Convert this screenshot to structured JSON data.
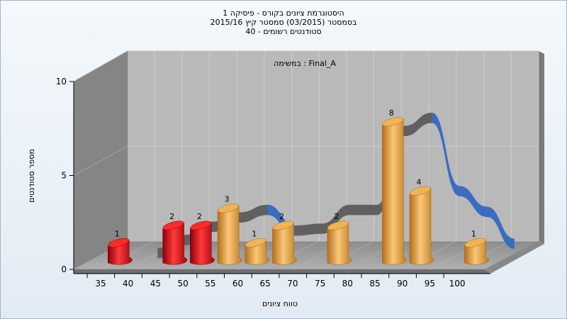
{
  "chart_data": {
    "type": "bar",
    "title_lines": [
      "היסטוגרמת ציונים בקורס - פיסיקה 1",
      "בסמסטר  (03/2015)  סמסטר קיץ 2015/16",
      "סטודנטים רשומים - 40"
    ],
    "annotation": "במשימה : Final_A",
    "xlabel": "טווח ציונים",
    "ylabel": "מספר סטודנטים",
    "ylim": [
      0,
      10
    ],
    "yticks": [
      0,
      5,
      10
    ],
    "xticks": [
      "35",
      "40",
      "45",
      "50",
      "55",
      "60",
      "65",
      "70",
      "75",
      "80",
      "85",
      "90",
      "95",
      "100"
    ],
    "bars": [
      {
        "x": 35,
        "value": 1,
        "label": "1",
        "color": "#d8151c"
      },
      {
        "x": 45,
        "value": 2,
        "label": "2",
        "color": "#d8151c"
      },
      {
        "x": 50,
        "value": 2,
        "label": "2",
        "color": "#d8151c"
      },
      {
        "x": 55,
        "value": 3,
        "label": "3",
        "color": "#e6a23c"
      },
      {
        "x": 60,
        "value": 1,
        "label": "1",
        "color": "#e6a23c"
      },
      {
        "x": 65,
        "value": 2,
        "label": "2",
        "color": "#e6a23c"
      },
      {
        "x": 75,
        "value": 2,
        "label": "2",
        "color": "#e6a23c"
      },
      {
        "x": 85,
        "value": 8,
        "label": "8",
        "color": "#e6a23c"
      },
      {
        "x": 90,
        "value": 4,
        "label": "4",
        "color": "#e6a23c"
      },
      {
        "x": 100,
        "value": 1,
        "label": "1",
        "color": "#e6a23c"
      }
    ],
    "curve": {
      "colors": [
        "#3a6cc0",
        "#606060"
      ],
      "points": [
        {
          "x": 40,
          "y": 0.3
        },
        {
          "x": 45,
          "y": 1.0
        },
        {
          "x": 50,
          "y": 1.7
        },
        {
          "x": 55,
          "y": 2.2
        },
        {
          "x": 60,
          "y": 2.6
        },
        {
          "x": 65,
          "y": 1.5
        },
        {
          "x": 70,
          "y": 1.6
        },
        {
          "x": 75,
          "y": 2.6
        },
        {
          "x": 80,
          "y": 2.6
        },
        {
          "x": 85,
          "y": 6.8
        },
        {
          "x": 90,
          "y": 7.5
        },
        {
          "x": 95,
          "y": 3.6
        },
        {
          "x": 100,
          "y": 2.5
        },
        {
          "x": 105,
          "y": 0.8
        }
      ]
    },
    "grid": true,
    "colors": {
      "wall_back": "#b9b9b9",
      "wall_side": "#858585",
      "floor": "#9a9a9a",
      "bar_red": "#d8151c",
      "bar_orange": "#e6a23c",
      "curve_blue": "#3a6cc0",
      "curve_gray": "#606060"
    }
  }
}
